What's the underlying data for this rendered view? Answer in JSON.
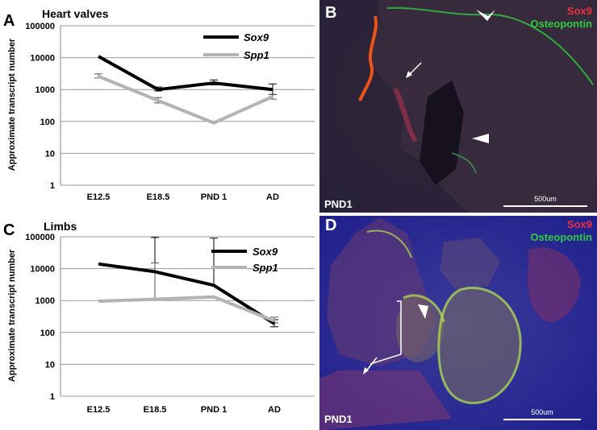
{
  "panels": {
    "A": "A",
    "B": "B",
    "C": "C",
    "D": "D"
  },
  "micrographs": [
    {
      "panel": "B",
      "legend": [
        "Sox9",
        "Osteopontin"
      ],
      "stage": "PND1",
      "scalebar": "500um"
    },
    {
      "panel": "D",
      "legend": [
        "Sox9",
        "Osteopontin"
      ],
      "stage": "PND1",
      "scalebar": "500um"
    }
  ],
  "colors": {
    "sox9_line": "#000000",
    "spp1_line": "#b3b3b3",
    "sox9_stain": "#e8303a",
    "osteopontin_stain": "#2ecc40"
  },
  "chart_data": [
    {
      "type": "line",
      "panel": "A",
      "title": "Heart valves",
      "xlabel": "",
      "ylabel": "Approximate transcript number",
      "yscale": "log",
      "ylim": [
        1,
        100000
      ],
      "yticks": [
        "1",
        "10",
        "100",
        "1000",
        "10000",
        "100000"
      ],
      "grid": true,
      "legend": "top-right",
      "categories": [
        "E12.5",
        "E18.5",
        "PND 1",
        "AD"
      ],
      "series": [
        {
          "name": "Sox9",
          "values": [
            11000,
            1000,
            1600,
            1000
          ],
          "err_hi": [
            0,
            1200,
            2000,
            1500
          ],
          "err_lo": [
            0,
            900,
            1400,
            700
          ]
        },
        {
          "name": "Spp1",
          "values": [
            2600,
            450,
            90,
            600
          ],
          "err_hi": [
            3100,
            560,
            0,
            700
          ],
          "err_lo": [
            2300,
            380,
            0,
            500
          ]
        }
      ]
    },
    {
      "type": "line",
      "panel": "C",
      "title": "Limbs",
      "xlabel": "",
      "ylabel": "Approximate transcript number",
      "yscale": "log",
      "ylim": [
        1,
        100000
      ],
      "yticks": [
        "1",
        "10",
        "100",
        "1000",
        "10000",
        "100000"
      ],
      "grid": true,
      "legend": "top-right",
      "categories": [
        "E12.5",
        "E18.5",
        "PND 1",
        "AD"
      ],
      "series": [
        {
          "name": "Sox9",
          "values": [
            14000,
            8000,
            3000,
            190
          ],
          "err_hi": [
            0,
            95000,
            90000,
            250
          ],
          "err_lo": [
            0,
            0,
            0,
            150
          ]
        },
        {
          "name": "Spp1",
          "values": [
            950,
            1100,
            1300,
            230
          ],
          "err_hi": [
            0,
            15000,
            0,
            300
          ],
          "err_lo": [
            0,
            0,
            0,
            200
          ]
        }
      ]
    }
  ]
}
